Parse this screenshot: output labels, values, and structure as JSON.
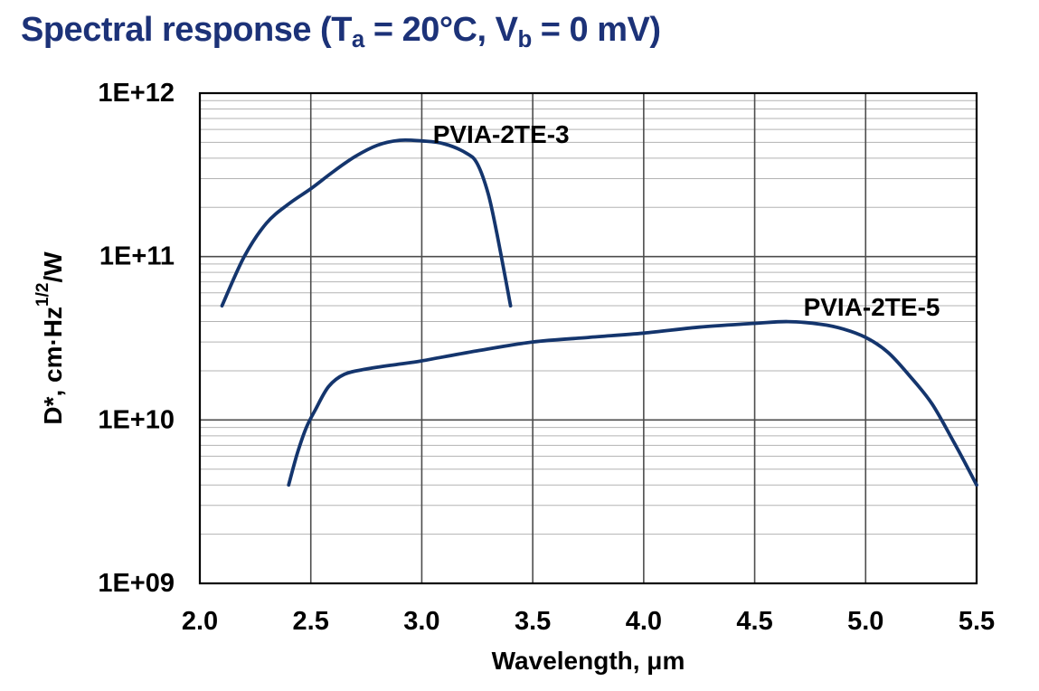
{
  "title": {
    "part1": "Spectral response (T",
    "sub1": "a",
    "part2": " = 20°C, V",
    "sub2": "b",
    "part3": " = 0 mV)",
    "color": "#1c3278"
  },
  "chart_data": {
    "type": "line",
    "title": "Spectral response (Ta = 20°C, Vb = 0 mV)",
    "xlabel": "Wavelength, μm",
    "ylabel": "D*, cm·Hz1/2/W",
    "ylabel_parts": {
      "base": "D*, cm·Hz",
      "sup": "1/2",
      "end": "/W"
    },
    "x_scale": "linear",
    "y_scale": "log",
    "xlim": [
      2.0,
      5.5
    ],
    "ylim": [
      1000000000.0,
      1000000000000.0
    ],
    "grid": "on",
    "legend_position": "inline-labels",
    "x_ticks": [
      {
        "label": "2.0",
        "value": 2.0
      },
      {
        "label": "2.5",
        "value": 2.5
      },
      {
        "label": "3.0",
        "value": 3.0
      },
      {
        "label": "3.5",
        "value": 3.5
      },
      {
        "label": "4.0",
        "value": 4.0
      },
      {
        "label": "4.5",
        "value": 4.5
      },
      {
        "label": "5.0",
        "value": 5.0
      },
      {
        "label": "5.5",
        "value": 5.5
      }
    ],
    "y_ticks": [
      {
        "label": "1E+12",
        "value": 1000000000000.0
      },
      {
        "label": "1E+11",
        "value": 100000000000.0
      },
      {
        "label": "1E+10",
        "value": 10000000000.0
      },
      {
        "label": "1E+09",
        "value": 1000000000.0
      }
    ],
    "series": [
      {
        "name": "PVIA-2TE-3",
        "color": "#14356d",
        "label": {
          "text": "PVIA-2TE-3",
          "x": 3.05,
          "y": 560000000000.0
        },
        "points": [
          [
            2.1,
            50000000000.0
          ],
          [
            2.2,
            100000000000.0
          ],
          [
            2.3,
            160000000000.0
          ],
          [
            2.4,
            210000000000.0
          ],
          [
            2.5,
            260000000000.0
          ],
          [
            2.6,
            330000000000.0
          ],
          [
            2.7,
            410000000000.0
          ],
          [
            2.8,
            480000000000.0
          ],
          [
            2.9,
            515000000000.0
          ],
          [
            3.0,
            510000000000.0
          ],
          [
            3.1,
            490000000000.0
          ],
          [
            3.2,
            430000000000.0
          ],
          [
            3.25,
            370000000000.0
          ],
          [
            3.3,
            240000000000.0
          ],
          [
            3.34,
            135000000000.0
          ],
          [
            3.38,
            70000000000.0
          ],
          [
            3.4,
            50000000000.0
          ]
        ]
      },
      {
        "name": "PVIA-2TE-5",
        "color": "#14356d",
        "label": {
          "text": "PVIA-2TE-5",
          "x": 4.72,
          "y": 49000000000.0
        },
        "points": [
          [
            2.4,
            4000000000.0
          ],
          [
            2.44,
            6300000000.0
          ],
          [
            2.48,
            9000000000.0
          ],
          [
            2.52,
            11500000000.0
          ],
          [
            2.58,
            16000000000.0
          ],
          [
            2.65,
            19000000000.0
          ],
          [
            2.75,
            20500000000.0
          ],
          [
            2.9,
            22000000000.0
          ],
          [
            3.0,
            23000000000.0
          ],
          [
            3.25,
            26500000000.0
          ],
          [
            3.5,
            30000000000.0
          ],
          [
            3.75,
            32000000000.0
          ],
          [
            4.0,
            34000000000.0
          ],
          [
            4.25,
            37000000000.0
          ],
          [
            4.5,
            39000000000.0
          ],
          [
            4.65,
            40000000000.0
          ],
          [
            4.8,
            38500000000.0
          ],
          [
            4.9,
            36000000000.0
          ],
          [
            5.0,
            32000000000.0
          ],
          [
            5.1,
            26000000000.0
          ],
          [
            5.2,
            18500000000.0
          ],
          [
            5.3,
            12500000000.0
          ],
          [
            5.4,
            7200000000.0
          ],
          [
            5.45,
            5400000000.0
          ],
          [
            5.5,
            4000000000.0
          ]
        ]
      }
    ],
    "colors": {
      "minor_grid": "#b3b3b3",
      "major_grid": "#4d4d4d",
      "border": "#000000",
      "tick_text": "#000000",
      "series_label_text": "#000000",
      "background": "#ffffff"
    }
  }
}
